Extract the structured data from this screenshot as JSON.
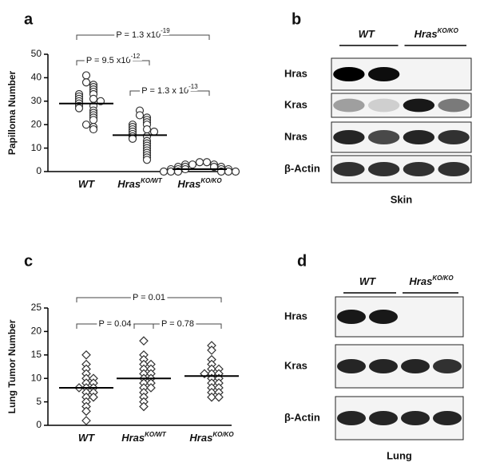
{
  "chart_data": [
    {
      "type": "dot",
      "panel": "a",
      "y_label": "Papilloma Number",
      "ylim": [
        0,
        50
      ],
      "yticks": [
        0,
        10,
        20,
        30,
        40,
        50
      ],
      "marker": "circle",
      "groups": [
        {
          "label": {
            "text": "WT"
          },
          "mean": 29,
          "values": [
            41,
            38,
            37,
            36,
            35,
            34,
            33,
            33,
            32,
            31,
            31,
            30,
            30,
            29,
            28,
            28,
            27,
            26,
            25,
            24,
            23,
            22,
            20,
            19,
            18
          ]
        },
        {
          "label": {
            "text": "Hras",
            "sup": "KO/WT"
          },
          "mean": 15.5,
          "values": [
            26,
            24,
            23,
            22,
            21,
            20,
            20,
            19,
            18,
            18,
            17,
            17,
            16,
            15,
            15,
            14,
            13,
            12,
            11,
            10,
            9,
            8,
            7,
            6,
            5
          ]
        },
        {
          "label": {
            "text": "Hras",
            "sup": "KO/KO"
          },
          "mean": 1,
          "values": [
            4,
            4,
            3,
            3,
            3,
            2,
            2,
            2,
            2,
            1,
            1,
            1,
            1,
            1,
            0,
            0,
            0,
            0,
            0,
            0
          ]
        }
      ],
      "annotations": [
        {
          "text": "P = 9.5 x10",
          "sup": "-12"
        },
        {
          "text": "P = 1.3 x 10",
          "sup": "-13"
        },
        {
          "text": "P = 1.3 x10",
          "sup": "-19"
        }
      ]
    },
    {
      "type": "dot",
      "panel": "c",
      "y_label": "Lung Tumor Number",
      "ylim": [
        0,
        25
      ],
      "yticks": [
        0,
        5,
        10,
        15,
        20,
        25
      ],
      "marker": "diamond",
      "groups": [
        {
          "label": {
            "text": "WT"
          },
          "mean": 8,
          "values": [
            15,
            13,
            12,
            11,
            10,
            10,
            9,
            9,
            8,
            8,
            8,
            7,
            7,
            6,
            6,
            5,
            4,
            3,
            1
          ]
        },
        {
          "label": {
            "text": "Hras",
            "sup": "KO/WT"
          },
          "mean": 10,
          "values": [
            18,
            15,
            14,
            13,
            13,
            12,
            12,
            11,
            11,
            10,
            10,
            9,
            9,
            8,
            8,
            7,
            6,
            5,
            4
          ]
        },
        {
          "label": {
            "text": "Hras",
            "sup": "KO/KO"
          },
          "mean": 10.5,
          "values": [
            17,
            16,
            14,
            13,
            12,
            12,
            11,
            11,
            11,
            10,
            10,
            9,
            9,
            8,
            8,
            7,
            7,
            6,
            6
          ]
        }
      ],
      "annotations": [
        {
          "text": "P = 0.04"
        },
        {
          "text": "P = 0.78"
        },
        {
          "text": "P = 0.01"
        }
      ]
    }
  ],
  "blots": [
    {
      "panel": "b",
      "headers": [
        {
          "text": "WT"
        },
        {
          "text": "Hras",
          "sup": "KO/KO"
        }
      ],
      "rows": [
        "Hras",
        "Kras",
        "Nras",
        "β-Actin"
      ],
      "tissue": "Skin"
    },
    {
      "panel": "d",
      "headers": [
        {
          "text": "WT"
        },
        {
          "text": "Hras",
          "sup": "KO/KO"
        }
      ],
      "rows": [
        "Hras",
        "Kras",
        "β-Actin"
      ],
      "tissue": "Lung"
    }
  ]
}
